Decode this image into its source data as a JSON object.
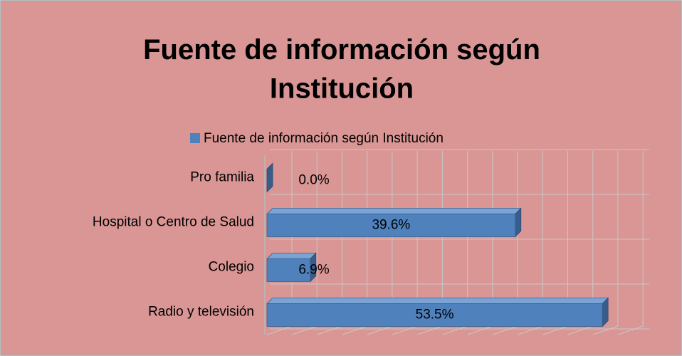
{
  "chart_data": {
    "type": "bar3d_horizontal",
    "title": "Fuente de información según Institución",
    "series_name": "Fuente de información según Institución",
    "categories": [
      "Pro familia",
      "Hospital o Centro de Salud",
      "Colegio",
      "Radio y televisión"
    ],
    "values": [
      0.0,
      39.6,
      6.9,
      53.5
    ],
    "value_labels": [
      "0.0%",
      "39.6%",
      "6.9%",
      "53.5%"
    ],
    "color": "#4f81bd",
    "xlim": [
      0,
      57
    ],
    "xgrid": [
      0,
      4,
      8,
      12,
      16,
      20,
      24,
      28,
      32,
      36,
      40,
      44,
      48,
      52,
      56
    ],
    "grid": true
  }
}
